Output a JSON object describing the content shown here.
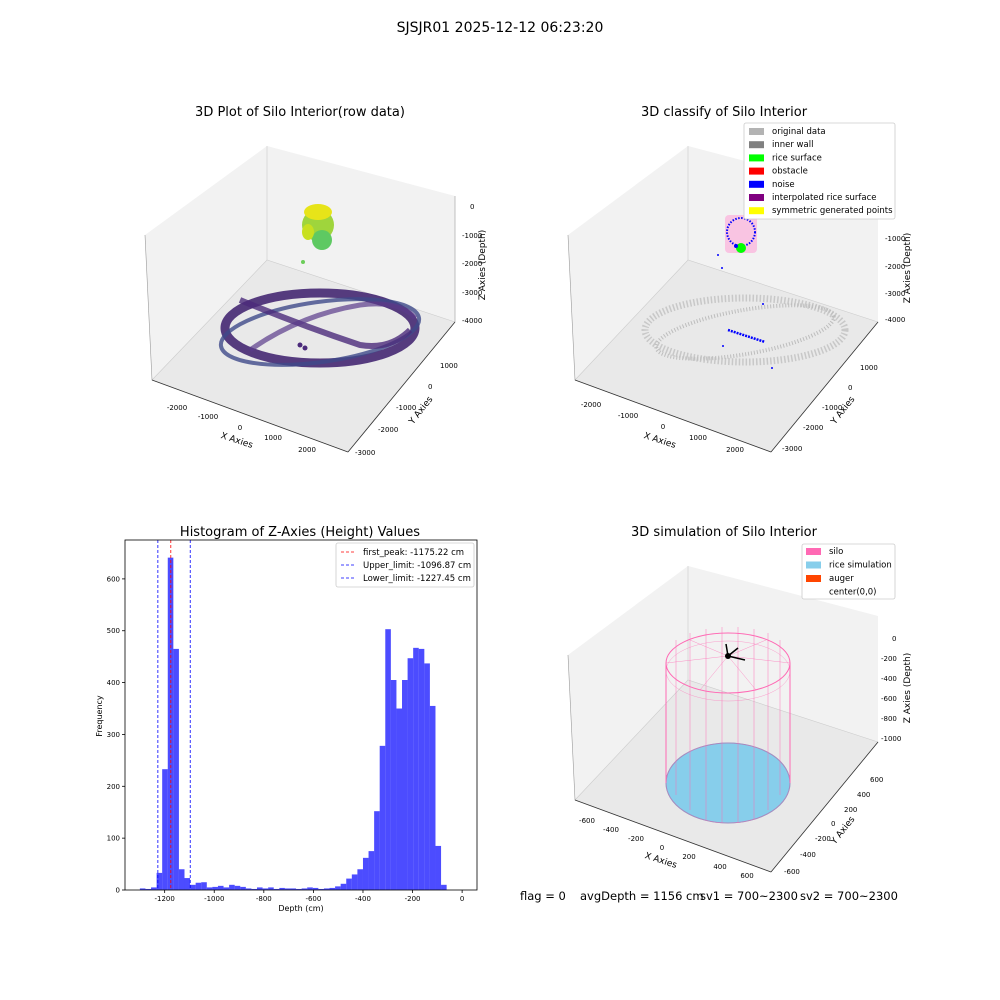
{
  "suptitle": "SJSJR01 2025-12-12 06:23:20",
  "panels": {
    "raw3d": {
      "title": "3D Plot of Silo Interior(row data)",
      "xlabel": "X Axies",
      "ylabel": "Y Axies",
      "zlabel": "Z Axies (Depth)",
      "xticks": [
        "-2000",
        "-1000",
        "0",
        "1000",
        "2000"
      ],
      "yticks": [
        "1000",
        "0",
        "-1000",
        "-2000",
        "-3000"
      ],
      "zticks": [
        "0",
        "-1000",
        "-2000",
        "-3000",
        "-4000"
      ]
    },
    "classify3d": {
      "title": "3D classify of Silo Interior",
      "xlabel": "X Axies",
      "ylabel": "Y Axies",
      "zlabel": "Z Axies (Depth)",
      "xticks": [
        "-2000",
        "-1000",
        "0",
        "1000",
        "2000"
      ],
      "yticks": [
        "1000",
        "0",
        "-1000",
        "-2000",
        "-3000"
      ],
      "zticks": [
        "-1000",
        "-2000",
        "-3000",
        "-4000"
      ],
      "legend": [
        {
          "label": "original data",
          "color": "#b3b3b3"
        },
        {
          "label": "inner wall",
          "color": "#808080"
        },
        {
          "label": "rice surface",
          "color": "#00ff00"
        },
        {
          "label": "obstacle",
          "color": "#ff0000"
        },
        {
          "label": "noise",
          "color": "#0000ff"
        },
        {
          "label": "interpolated rice surface",
          "color": "#800080"
        },
        {
          "label": "symmetric generated points",
          "color": "#ffff00"
        }
      ]
    },
    "simulation3d": {
      "title": "3D simulation of Silo Interior",
      "xlabel": "X Axies",
      "ylabel": "Y Axies",
      "zlabel": "Z Axies (Depth)",
      "xticks": [
        "-600",
        "-400",
        "-200",
        "0",
        "200",
        "400",
        "600"
      ],
      "yticks": [
        "600",
        "400",
        "200",
        "0",
        "-200",
        "-400",
        "-600"
      ],
      "zticks": [
        "0",
        "-200",
        "-400",
        "-600",
        "-800",
        "-1000"
      ],
      "legend": [
        {
          "label": "silo",
          "color": "#ff69b4"
        },
        {
          "label": "rice simulation",
          "color": "#87ceeb"
        },
        {
          "label": "auger",
          "color": "#ff4500"
        },
        {
          "label": "center(0,0)",
          "color": ""
        }
      ]
    }
  },
  "chart_data": {
    "type": "bar",
    "title": "Histogram of Z-Axies (Height) Values",
    "xlabel": "Depth (cm)",
    "ylabel": "Frequency",
    "xlim": [
      -1360,
      60
    ],
    "ylim": [
      0,
      675
    ],
    "xticks": [
      -1200,
      -1000,
      -800,
      -600,
      -400,
      -200,
      0
    ],
    "yticks": [
      0,
      100,
      200,
      300,
      400,
      500,
      600
    ],
    "bar_color": "#0000ff",
    "bin_width": 22.5,
    "bins": [
      {
        "x0": -1300,
        "count": 3
      },
      {
        "x0": -1277.5,
        "count": 2
      },
      {
        "x0": -1255,
        "count": 5
      },
      {
        "x0": -1232.5,
        "count": 33
      },
      {
        "x0": -1210,
        "count": 233
      },
      {
        "x0": -1187.5,
        "count": 641
      },
      {
        "x0": -1165,
        "count": 465
      },
      {
        "x0": -1142.5,
        "count": 40
      },
      {
        "x0": -1120,
        "count": 23
      },
      {
        "x0": -1097.5,
        "count": 10
      },
      {
        "x0": -1075,
        "count": 14
      },
      {
        "x0": -1052.5,
        "count": 15
      },
      {
        "x0": -1030,
        "count": 5
      },
      {
        "x0": -1007.5,
        "count": 6
      },
      {
        "x0": -985,
        "count": 8
      },
      {
        "x0": -962.5,
        "count": 5
      },
      {
        "x0": -940,
        "count": 10
      },
      {
        "x0": -917.5,
        "count": 8
      },
      {
        "x0": -895,
        "count": 6
      },
      {
        "x0": -872.5,
        "count": 3
      },
      {
        "x0": -850,
        "count": 2
      },
      {
        "x0": -827.5,
        "count": 5
      },
      {
        "x0": -805,
        "count": 3
      },
      {
        "x0": -782.5,
        "count": 5
      },
      {
        "x0": -760,
        "count": 2
      },
      {
        "x0": -737.5,
        "count": 4
      },
      {
        "x0": -715,
        "count": 3
      },
      {
        "x0": -692.5,
        "count": 3
      },
      {
        "x0": -670,
        "count": 2
      },
      {
        "x0": -647.5,
        "count": 3
      },
      {
        "x0": -625,
        "count": 5
      },
      {
        "x0": -602.5,
        "count": 4
      },
      {
        "x0": -580,
        "count": 2
      },
      {
        "x0": -557.5,
        "count": 3
      },
      {
        "x0": -535,
        "count": 4
      },
      {
        "x0": -512.5,
        "count": 7
      },
      {
        "x0": -490,
        "count": 12
      },
      {
        "x0": -467.5,
        "count": 22
      },
      {
        "x0": -445,
        "count": 30
      },
      {
        "x0": -422.5,
        "count": 40
      },
      {
        "x0": -400,
        "count": 62
      },
      {
        "x0": -377.5,
        "count": 75
      },
      {
        "x0": -355,
        "count": 152
      },
      {
        "x0": -332.5,
        "count": 278
      },
      {
        "x0": -310,
        "count": 503
      },
      {
        "x0": -287.5,
        "count": 405
      },
      {
        "x0": -265,
        "count": 350
      },
      {
        "x0": -242.5,
        "count": 405
      },
      {
        "x0": -220,
        "count": 447
      },
      {
        "x0": -197.5,
        "count": 467
      },
      {
        "x0": -175,
        "count": 465
      },
      {
        "x0": -152.5,
        "count": 437
      },
      {
        "x0": -130,
        "count": 355
      },
      {
        "x0": -107.5,
        "count": 85
      },
      {
        "x0": -85,
        "count": 10
      }
    ],
    "reference_lines": [
      {
        "label": "first_peak: -1175.22 cm",
        "x": -1175.22,
        "color": "#ff0000"
      },
      {
        "label": "Upper_limit: -1096.87 cm",
        "x": -1096.87,
        "color": "#0000ff"
      },
      {
        "label": "Lower_limit: -1227.45 cm",
        "x": -1227.45,
        "color": "#0000ff"
      }
    ]
  },
  "footer": {
    "flag": "flag = 0",
    "avg_depth": "avgDepth = 1156 cm",
    "sv1": "sv1 = 700~2300",
    "sv2": "sv2 = 700~2300"
  }
}
